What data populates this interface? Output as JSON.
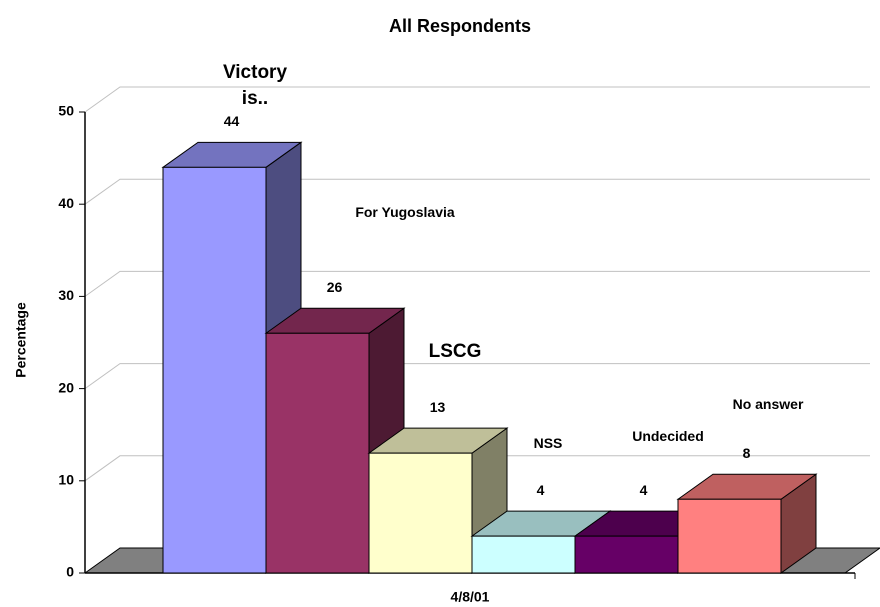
{
  "chart_data": {
    "type": "bar3d",
    "title": "All Respondents",
    "y_label": "Percentage",
    "categories": [
      "4/8/01"
    ],
    "series": [
      {
        "name": "Victory is..",
        "color": "#9999ff",
        "values": [
          44
        ]
      },
      {
        "name": "For Yugoslavia",
        "color": "#993366",
        "values": [
          26
        ]
      },
      {
        "name": "LSCG",
        "color": "#ffffcc",
        "values": [
          13
        ]
      },
      {
        "name": "NSS",
        "color": "#ccffff",
        "values": [
          4
        ]
      },
      {
        "name": "Undecided",
        "color": "#660066",
        "values": [
          4
        ]
      },
      {
        "name": "No answer",
        "color": "#ff8080",
        "values": [
          8
        ]
      }
    ],
    "ylim": [
      0,
      50
    ],
    "yticks": [
      0,
      10,
      20,
      30,
      40,
      50
    ],
    "grid": true
  }
}
